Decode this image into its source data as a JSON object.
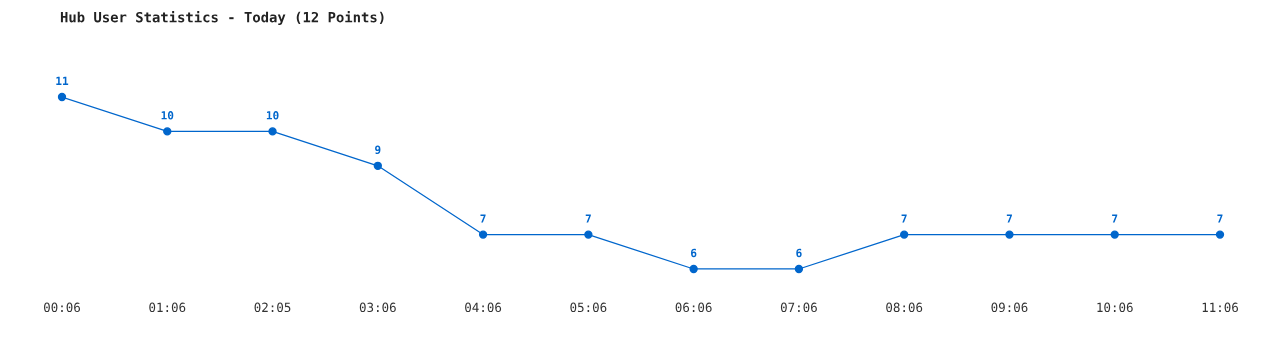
{
  "chart_data": {
    "type": "line",
    "title": "Hub User Statistics - Today (12 Points)",
    "categories": [
      "00:06",
      "01:06",
      "02:05",
      "03:06",
      "04:06",
      "05:06",
      "06:06",
      "07:06",
      "08:06",
      "09:06",
      "10:06",
      "11:06"
    ],
    "series": [
      {
        "color": "#0066cc",
        "values": [
          11,
          10,
          10,
          9,
          7,
          7,
          6,
          6,
          7,
          7,
          7,
          7
        ]
      }
    ],
    "data_labels": true,
    "marker": "circle",
    "line_style": "solid",
    "grid": false,
    "tick_labels": "x"
  }
}
